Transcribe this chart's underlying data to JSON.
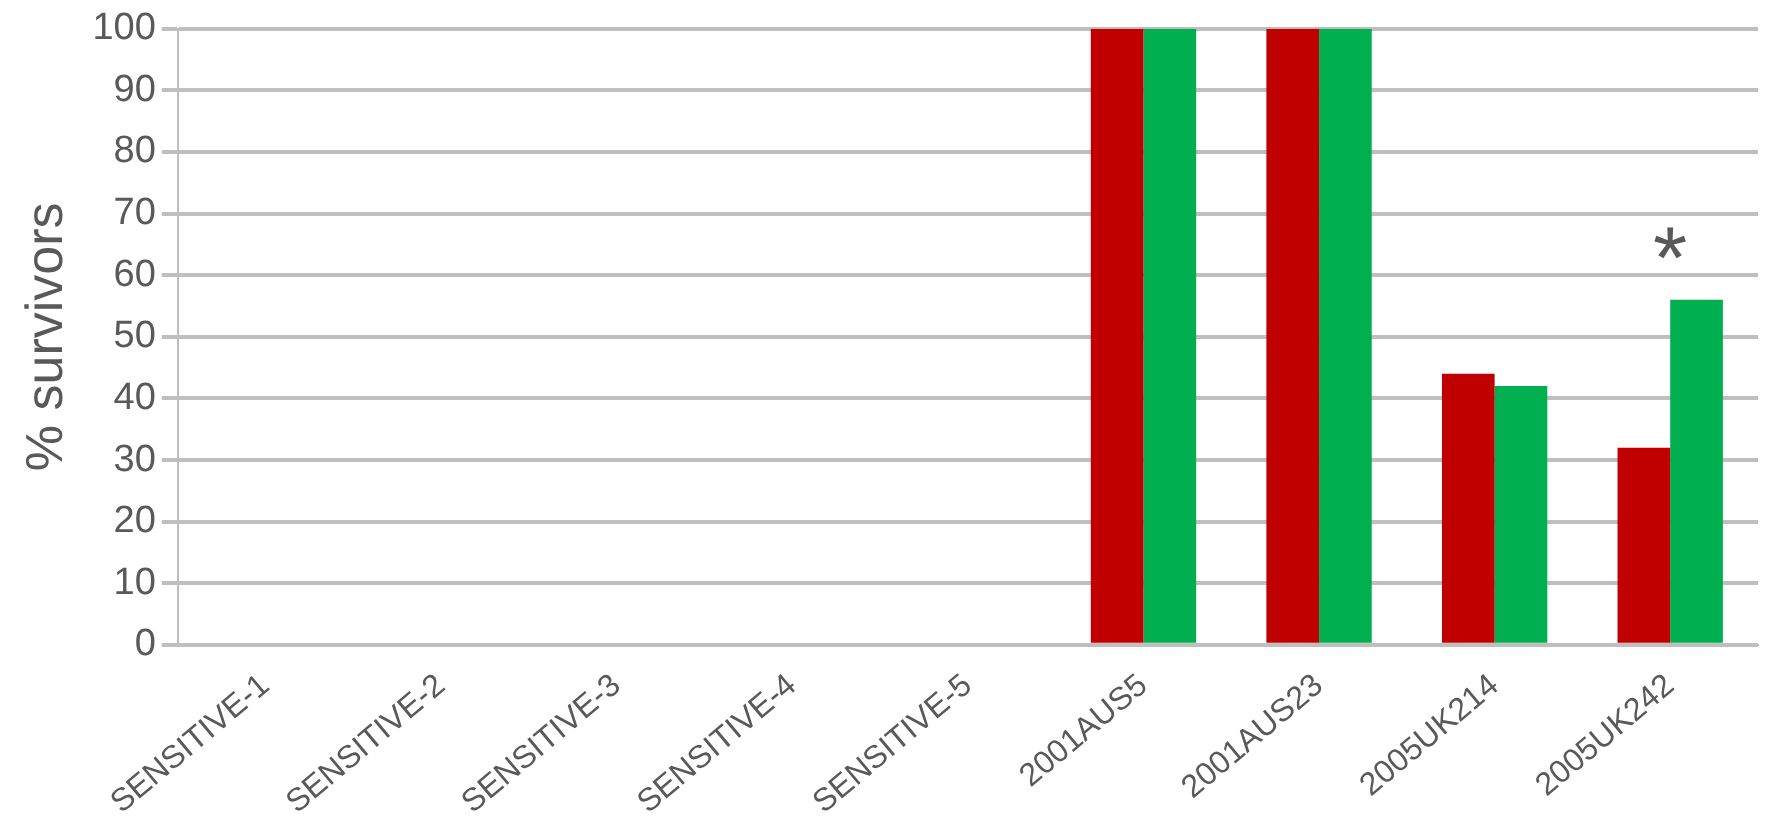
{
  "chart_data": {
    "type": "bar",
    "ylabel": "% survivors",
    "categories": [
      "SENSITIVE-1",
      "SENSITIVE-2",
      "SENSITIVE-3",
      "SENSITIVE-4",
      "SENSITIVE-5",
      "2001AUS5",
      "2001AUS23",
      "2005UK214",
      "2005UK242"
    ],
    "series": [
      {
        "color": "#c00000",
        "values": [
          0,
          0,
          0,
          0,
          0,
          100,
          100,
          44,
          32
        ]
      },
      {
        "color": "#00b050",
        "values": [
          0,
          0,
          0,
          0,
          0,
          100,
          100,
          42,
          56
        ]
      }
    ],
    "ylim": [
      0,
      100
    ],
    "yticks": [
      0,
      10,
      20,
      30,
      40,
      50,
      60,
      70,
      80,
      90,
      100
    ],
    "grid": "y",
    "annotations": [
      {
        "text": "*",
        "x": "2005UK242",
        "y": 56
      }
    ]
  }
}
